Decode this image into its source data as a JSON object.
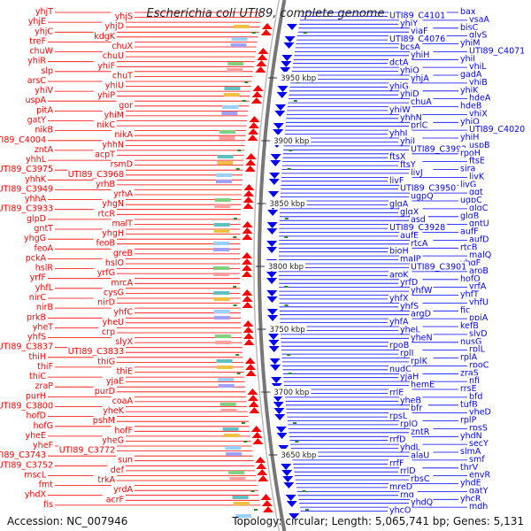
{
  "title": "Escherichia coli UTI89, complete genome",
  "footer": {
    "accession": "Accession: NC_007946",
    "summary": "Topology: circular; Length: 5,065,741 bp; Genes: 5,131"
  },
  "colors": {
    "left_strand": "#ff0000",
    "right_strand": "#0000ff",
    "rna": "#00b0e0",
    "backbone": "#777777",
    "ticks": "#228b22"
  },
  "kbp_ticks": [
    "3950 kbp",
    "3900 kbp",
    "3850 kbp",
    "3800 kbp",
    "3750 kbp",
    "3700 kbp",
    "3650 kbp"
  ],
  "left_labels": [
    "yhjT",
    "yhjS",
    "yhjE",
    "yhjD",
    "yhjC",
    "kdgK",
    "treF",
    "chuX",
    "chuW",
    "chuU",
    "yhiR",
    "yhiF",
    "slp",
    "chuT",
    "arsC",
    "yhiU",
    "yhiV",
    "yhiP",
    "uspA",
    "gor",
    "pitA",
    "yhiM",
    "gatY",
    "nikC",
    "nikB",
    "nikA",
    "UTI89_C4004",
    "yhhN",
    "zntA",
    "acpT",
    "yhhL",
    "rsmD",
    "UTI89_C3975",
    "UTI89_C3968",
    "yhhK",
    "yrhB",
    "UTI89_C3949",
    "yrhA",
    "yhhA",
    "yhgN",
    "UTI89_C3933",
    "rtcR",
    "glpD",
    "malT",
    "gntT",
    "yhgH",
    "yhgG",
    "feoB",
    "feoA",
    "greB",
    "pckA",
    "hslO",
    "hslR",
    "yrfG",
    "yrfF",
    "mrcA",
    "yhfL",
    "cysG",
    "nirC",
    "nirD",
    "nirB",
    "yhfC",
    "prkB",
    "yheU",
    "yheT",
    "crp",
    "yhfS",
    "slyX",
    "UTI89_C3837",
    "UTI89_C3833",
    "thiH",
    "thiG",
    "thiF",
    "thiE",
    "thiC",
    "yjaE",
    "zraP",
    "purD",
    "purH",
    "coaA",
    "UTI89_C3800",
    "yheK",
    "hofD",
    "pshM",
    "hofG",
    "hofF",
    "yheE",
    "yheG",
    "yheF",
    "UTI89_C3772",
    "UTI89_C3743",
    "sun",
    "UTI89_C3752",
    "def",
    "mscL",
    "trkA",
    "fmt",
    "yrdA",
    "yhdX",
    "acrF",
    "fis"
  ],
  "right_labels": [
    "bax",
    "UTI89_C4101",
    "ysaA",
    "yhjY",
    "bisC",
    "yiaF",
    "glyS",
    "UTI89_C4076",
    "yhjM",
    "bcsA",
    "UTI89_C4071",
    "yhiH",
    "yhiJ",
    "dctA",
    "yhjL",
    "yhjQ",
    "gadA",
    "yhjA",
    "yhjB",
    "yhjG",
    "yhjK",
    "yhiD",
    "hdeA",
    "chuA",
    "hdeB",
    "yhiW",
    "yhiX",
    "yhhN",
    "yhiQ",
    "prlC",
    "UTI89_C4020",
    "yhhJ",
    "yhiH",
    "yhiI",
    "uspB",
    "UTI89_C3992",
    "rpoH",
    "ftsX",
    "ftsE",
    "ftsY",
    "sira",
    "livJ",
    "livK",
    "livF",
    "livG",
    "UTI89_C3950",
    "ggt",
    "ugpQ",
    "ugpC",
    "glgA",
    "glgC",
    "glgX",
    "glgB",
    "asd",
    "gntU",
    "UTI89_C3928",
    "aufF",
    "aufE",
    "aufD",
    "rtcA",
    "rtcB",
    "bioH",
    "malQ",
    "malP",
    "yhgF",
    "UTI89_C3901",
    "aroB",
    "aroK",
    "hofQ",
    "yrfD",
    "yrfA",
    "yhfW",
    "yhfT",
    "yhfX",
    "yhfU",
    "yhfS",
    "fic",
    "argD",
    "ppiA",
    "yhfA",
    "kefB",
    "yheL",
    "slyD",
    "yheN",
    "nusG",
    "rpoB",
    "rplL",
    "rplJ",
    "rplA",
    "rplK",
    "rpoC",
    "nudC",
    "zraS",
    "yjaH",
    "nfi",
    "hemE",
    "rrsE",
    "rrlE",
    "bfd",
    "yheB",
    "tufB",
    "bfr",
    "yheD",
    "rpsL",
    "rplP",
    "rplQ",
    "rpsS",
    "zntR",
    "yhdN",
    "rrfD",
    "secY",
    "yhdL",
    "slmA",
    "alaU",
    "smf",
    "rrfF",
    "thrV",
    "rrlD",
    "envR",
    "rbsC",
    "yhdE",
    "mreD",
    "gatY",
    "rng",
    "yhcR",
    "yhdQ",
    "mdh",
    "yhcO"
  ]
}
